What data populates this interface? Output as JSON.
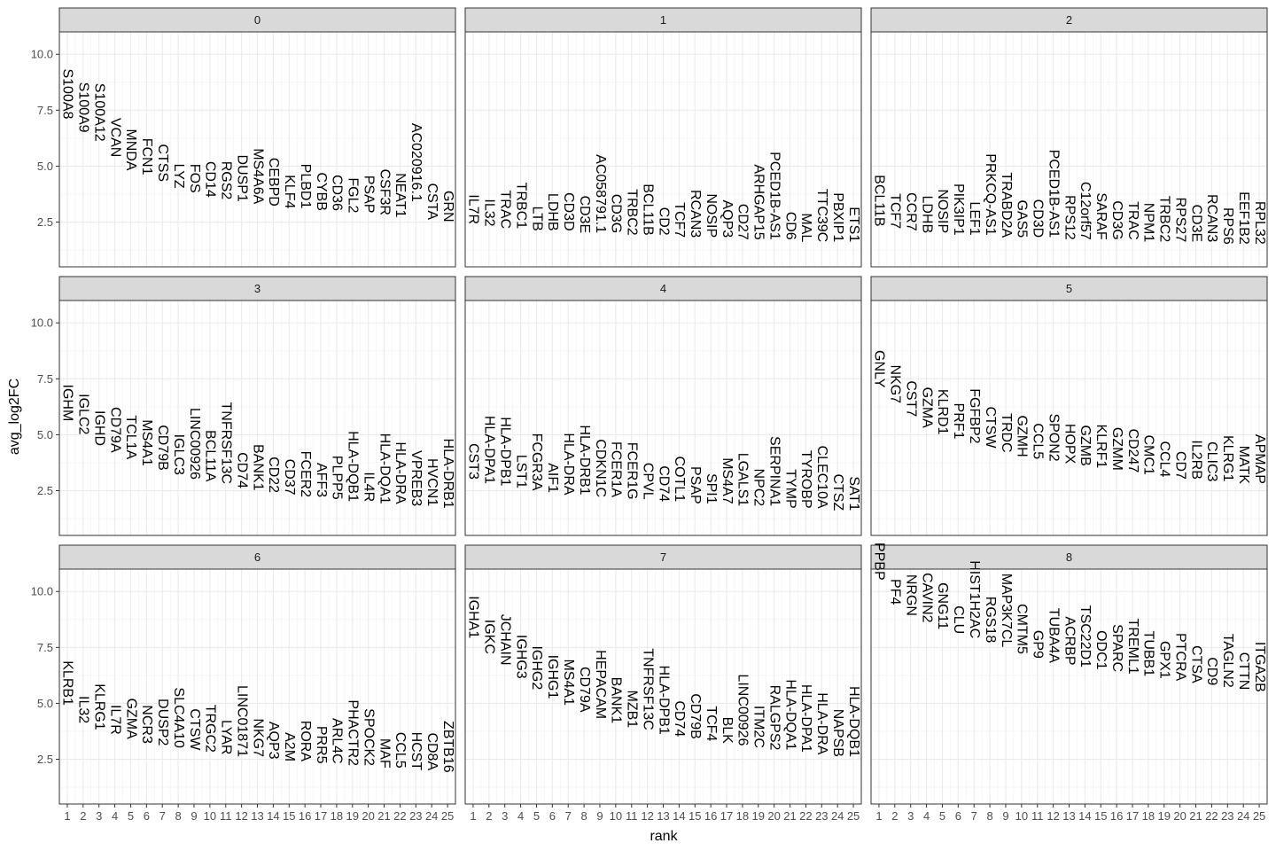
{
  "chart_data": {
    "type": "scatter",
    "xlabel": "rank",
    "ylabel": "avg_log2FC",
    "xlim": [
      0.5,
      25.5
    ],
    "ylim": [
      0.5,
      11.0
    ],
    "x_ticks": [
      1,
      2,
      3,
      4,
      5,
      6,
      7,
      8,
      9,
      10,
      11,
      12,
      13,
      14,
      15,
      16,
      17,
      18,
      19,
      20,
      21,
      22,
      23,
      24,
      25
    ],
    "y_ticks": [
      2.5,
      5.0,
      7.5,
      10.0
    ],
    "y_tick_labels": [
      "2.5",
      "5.0",
      "7.5",
      "10.0"
    ],
    "grid": true,
    "panels": [
      {
        "label": "0",
        "genes": [
          "S100A8",
          "S100A9",
          "S100A12",
          "VCAN",
          "MNDA",
          "FCN1",
          "CTSS",
          "LYZ",
          "FOS",
          "CD14",
          "RGS2",
          "DUSP1",
          "MS4A6A",
          "CEBPD",
          "KLF4",
          "PLBD1",
          "CYBB",
          "CD36",
          "FGL2",
          "PSAP",
          "CSF3R",
          "NEAT1",
          "AC020916.1",
          "CSTA",
          "GRN"
        ],
        "values": [
          7.1,
          6.5,
          6.1,
          5.4,
          4.8,
          4.6,
          4.3,
          4.0,
          3.8,
          3.6,
          3.5,
          3.4,
          3.3,
          3.2,
          3.1,
          3.1,
          3.0,
          3.0,
          2.9,
          2.9,
          2.8,
          2.7,
          3.4,
          2.6,
          2.5
        ]
      },
      {
        "label": "1",
        "genes": [
          "IL7R",
          "IL32",
          "TRAC",
          "TRBC1",
          "LTB",
          "LDHB",
          "CD3D",
          "CD3E",
          "AC058791.1",
          "CD3G",
          "TRBC2",
          "BCL11B",
          "CD2",
          "TCF7",
          "RCAN3",
          "NOSIP",
          "AQP3",
          "CD27",
          "ARHGAP15",
          "PCED1B-AS1",
          "CD6",
          "MAL",
          "TTC39C",
          "PBXIP1",
          "ETS1"
        ],
        "values": [
          2.4,
          2.3,
          2.2,
          2.2,
          2.1,
          2.1,
          2.1,
          2.0,
          2.0,
          2.0,
          1.9,
          1.9,
          1.9,
          1.8,
          1.8,
          1.8,
          1.8,
          1.7,
          1.7,
          1.7,
          1.7,
          1.6,
          1.6,
          1.6,
          1.6
        ]
      },
      {
        "label": "2",
        "genes": [
          "BCL11B",
          "TCF7",
          "CCR7",
          "LDHB",
          "NOSIP",
          "PIK3IP1",
          "LEF1",
          "PRKCQ-AS1",
          "TRABD2A",
          "GAS5",
          "CD3D",
          "PCED1B-AS1",
          "RPS12",
          "C12orf57",
          "SARAF",
          "CD3G",
          "TRAC",
          "NPM1",
          "TRBC2",
          "RPS27",
          "CD3E",
          "RCAN3",
          "RPS6",
          "EEF1B2",
          "RPL32"
        ],
        "values": [
          2.3,
          2.2,
          2.1,
          2.0,
          2.0,
          1.9,
          1.9,
          1.9,
          1.8,
          1.8,
          1.8,
          1.8,
          1.7,
          1.7,
          1.7,
          1.7,
          1.7,
          1.6,
          1.6,
          1.6,
          1.6,
          1.6,
          1.5,
          1.5,
          1.5
        ]
      },
      {
        "label": "3",
        "genes": [
          "IGHM",
          "IGLC2",
          "IGHD",
          "CD79A",
          "TCL1A",
          "MS4A1",
          "CD79B",
          "IGLC3",
          "LINC00926",
          "BCL11A",
          "TNFRSF13C",
          "CD74",
          "BANK1",
          "CD22",
          "CD37",
          "FCER2",
          "AFF3",
          "PLPP5",
          "HLA-DQB1",
          "IL4R",
          "HLA-DQA1",
          "HLA-DRA",
          "VPREB3",
          "HVCN1",
          "HLA-DRB1"
        ],
        "values": [
          5.6,
          5.0,
          4.5,
          4.2,
          3.9,
          3.6,
          3.4,
          3.2,
          3.0,
          2.9,
          2.8,
          2.6,
          2.5,
          2.4,
          2.3,
          2.2,
          2.2,
          2.1,
          2.0,
          2.0,
          1.9,
          1.9,
          1.8,
          1.8,
          1.7
        ]
      },
      {
        "label": "4",
        "genes": [
          "CST3",
          "HLA-DPA1",
          "HLA-DPB1",
          "LST1",
          "FCGR3A",
          "AIF1",
          "HLA-DRA",
          "HLA-DRB1",
          "CDKN1C",
          "FCER1A",
          "FCER1G",
          "CPVL",
          "CD74",
          "COTL1",
          "PSAP",
          "SPI1",
          "MS4A7",
          "LGALS1",
          "NPC2",
          "SERPINA1",
          "TYMP",
          "TYROBP",
          "CLEC10A",
          "CTSZ",
          "SAT1"
        ],
        "values": [
          3.0,
          2.8,
          2.7,
          2.6,
          2.5,
          2.4,
          2.3,
          2.3,
          2.2,
          2.2,
          2.1,
          2.1,
          2.0,
          2.0,
          1.9,
          1.9,
          1.9,
          1.8,
          1.8,
          1.8,
          1.7,
          1.7,
          1.7,
          1.6,
          1.6
        ]
      },
      {
        "label": "5",
        "genes": [
          "GNLY",
          "NKG7",
          "CST7",
          "GZMA",
          "KLRD1",
          "PRF1",
          "FGFBP2",
          "CTSW",
          "TRDC",
          "GZMH",
          "CCL5",
          "SPON2",
          "HOPX",
          "GZMB",
          "KLRF1",
          "GZMM",
          "CD247",
          "CMC1",
          "CCL4",
          "CD7",
          "IL2RB",
          "CLIC3",
          "KLRG1",
          "MATK",
          "APMAP"
        ],
        "values": [
          7.1,
          6.4,
          5.8,
          5.3,
          5.0,
          4.8,
          4.6,
          4.4,
          4.2,
          4.0,
          3.9,
          3.8,
          3.7,
          3.6,
          3.5,
          3.4,
          3.3,
          3.2,
          3.1,
          3.0,
          3.0,
          2.9,
          2.9,
          2.8,
          2.8
        ]
      },
      {
        "label": "6",
        "genes": [
          "KLRB1",
          "IL32",
          "KLRG1",
          "IL7R",
          "GZMA",
          "NCR3",
          "DUSP2",
          "SLC4A10",
          "CTSW",
          "TRGC2",
          "LYAR",
          "LINC01871",
          "NKG7",
          "AQP3",
          "A2M",
          "RORA",
          "PRR5",
          "ARL4C",
          "PHACTR2",
          "SPOCK2",
          "MAF",
          "CCL5",
          "HCST",
          "CD8A",
          "ZBTB16"
        ],
        "values": [
          4.9,
          4.1,
          3.8,
          3.6,
          3.4,
          3.2,
          3.1,
          3.0,
          2.9,
          2.8,
          2.7,
          2.6,
          2.6,
          2.5,
          2.4,
          2.4,
          2.3,
          2.3,
          2.2,
          2.2,
          2.1,
          2.1,
          2.0,
          2.0,
          1.9
        ]
      },
      {
        "label": "7",
        "genes": [
          "IGHA1",
          "IGKC",
          "JCHAIN",
          "IGHG3",
          "IGHG2",
          "IGHG1",
          "MS4A1",
          "CD79A",
          "HEPACAM",
          "BANK1",
          "MZB1",
          "TNFRSF13C",
          "HLA-DPB1",
          "CD74",
          "CD79B",
          "TCF4",
          "BLK",
          "LINC00926",
          "ITM2C",
          "RALGPS2",
          "HLA-DQA1",
          "HLA-DPA1",
          "HLA-DRA",
          "NAPSB",
          "HLA-DQB1"
        ],
        "values": [
          7.9,
          7.2,
          6.7,
          6.1,
          5.6,
          5.2,
          4.9,
          4.6,
          4.3,
          4.1,
          3.9,
          3.8,
          3.6,
          3.5,
          3.4,
          3.3,
          3.2,
          3.1,
          3.0,
          2.9,
          2.9,
          2.8,
          2.7,
          2.6,
          2.6
        ]
      },
      {
        "label": "8",
        "genes": [
          "PPBP",
          "PF4",
          "NRGN",
          "CAVIN2",
          "GNG11",
          "CLU",
          "HIST1H2AC",
          "RGS18",
          "MAP3K7CL",
          "CMTM5",
          "GP9",
          "TUBA4A",
          "ACRBP",
          "TSC22D1",
          "ODC1",
          "SPARC",
          "TREML1",
          "TUBB1",
          "GPX1",
          "PTCRA",
          "CTSA",
          "CD9",
          "TAGLN2",
          "CTTN",
          "ITGA2B"
        ],
        "values": [
          10.5,
          9.4,
          8.9,
          8.6,
          8.3,
          8.1,
          7.9,
          7.7,
          7.5,
          7.2,
          7.0,
          6.8,
          6.7,
          6.6,
          6.5,
          6.4,
          6.3,
          6.2,
          6.1,
          6.0,
          5.9,
          5.8,
          5.7,
          5.6,
          5.5
        ]
      }
    ]
  }
}
